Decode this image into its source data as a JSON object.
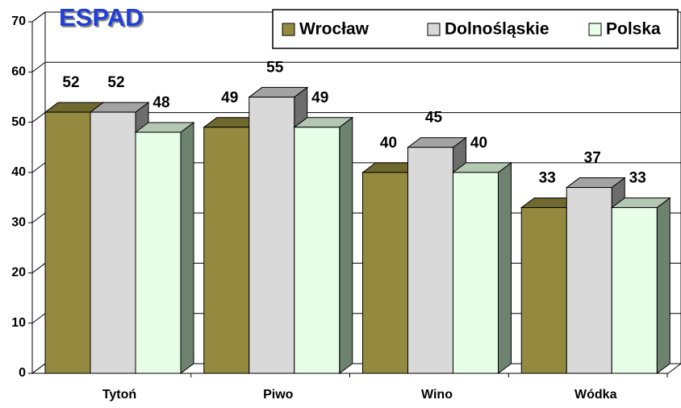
{
  "chart_data": {
    "type": "bar3d",
    "title": "ESPAD",
    "categories": [
      "Tytoń",
      "Piwo",
      "Wino",
      "Wódka"
    ],
    "series": [
      {
        "name": "Wrocław",
        "color": "#948a3f",
        "values": [
          52,
          49,
          40,
          33
        ]
      },
      {
        "name": "Dolnośląskie",
        "color": "#d9d9d9",
        "values": [
          52,
          55,
          45,
          37
        ]
      },
      {
        "name": "Polska",
        "color": "#e6ffe6",
        "values": [
          48,
          49,
          40,
          33
        ]
      }
    ],
    "ylim": [
      0,
      70
    ],
    "yticks": [
      0,
      10,
      20,
      30,
      40,
      50,
      60,
      70
    ],
    "grid": true,
    "legend": "top-right"
  }
}
